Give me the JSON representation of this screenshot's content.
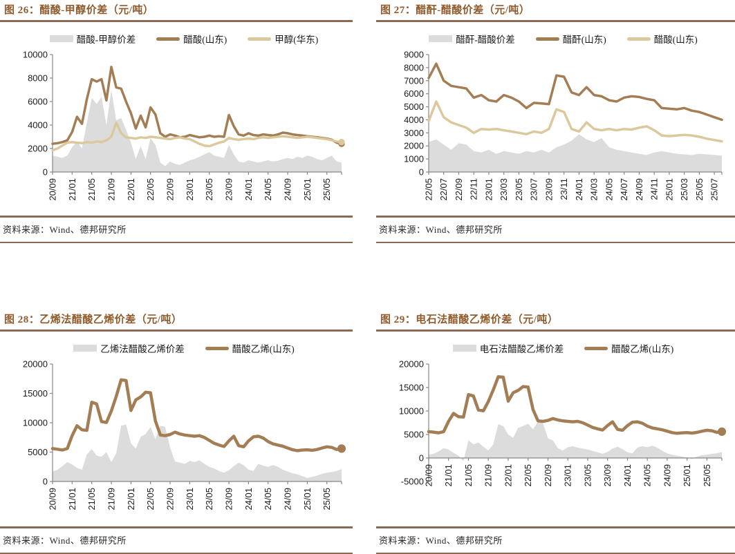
{
  "theme": {
    "title_color": "#8F5B2C",
    "rule_color": "#8A6A52",
    "spread_fill": "#DCDCDC",
    "dark_line": "#A37D54",
    "light_line": "#DBC89C"
  },
  "source_note": "资料来源：Wind、德邦研究所",
  "chart_data": [
    {
      "type": "area+line",
      "title": "图 26：醋酸-甲醇价差（元/吨）",
      "source": "资料来源：Wind、德邦研究所",
      "ylim": [
        0,
        10000
      ],
      "yticks": [
        0,
        2000,
        4000,
        6000,
        8000,
        10000
      ],
      "x_tick_labels": [
        "20/09",
        "21/01",
        "21/05",
        "21/09",
        "22/01",
        "22/05",
        "22/09",
        "23/01",
        "23/05",
        "23/09",
        "24/01",
        "24/05",
        "24/09",
        "25/01",
        "25/05"
      ],
      "grid": false,
      "legend_position": "top",
      "series": [
        {
          "name": "醋酸-甲醇价差",
          "type": "area",
          "color": "#DCDCDC",
          "values": [
            1400,
            1300,
            1200,
            1400,
            2100,
            2600,
            2000,
            4200,
            6300,
            5800,
            6400,
            4000,
            7000,
            4400,
            4600,
            3600,
            2500,
            1100,
            2200,
            1100,
            2900,
            2300,
            800,
            500,
            900,
            700,
            600,
            800,
            1000,
            1100,
            1300,
            1500,
            1700,
            1400,
            1300,
            1200,
            2300,
            1500,
            900,
            800,
            1000,
            900,
            800,
            900,
            1000,
            900,
            950,
            1100,
            1200,
            1100,
            1300,
            1200,
            1400,
            1300,
            1100,
            1000,
            1200,
            1400,
            900,
            800
          ]
        },
        {
          "name": "醋酸(山东)",
          "type": "line",
          "color": "#A37D54",
          "width": 3.5,
          "end_dot": true,
          "values": [
            2400,
            2450,
            2550,
            2700,
            3400,
            4700,
            4100,
            6200,
            7900,
            7700,
            7900,
            6100,
            8950,
            7200,
            7100,
            6000,
            5000,
            3700,
            4800,
            3800,
            5500,
            4900,
            3300,
            3000,
            3200,
            3100,
            2950,
            3000,
            3150,
            3050,
            2950,
            3000,
            3100,
            3000,
            3050,
            3000,
            4850,
            3900,
            3200,
            3100,
            3300,
            3150,
            3100,
            3200,
            3150,
            3100,
            3200,
            3350,
            3300,
            3200,
            3150,
            3100,
            3050,
            3000,
            2950,
            2900,
            2850,
            2750,
            2500,
            2400
          ]
        },
        {
          "name": "甲醇(华东)",
          "type": "line",
          "color": "#DBC89C",
          "width": 3.5,
          "end_dot": true,
          "values": [
            1850,
            2000,
            2250,
            2500,
            2550,
            2500,
            2450,
            2550,
            2500,
            2600,
            2550,
            2700,
            3000,
            4200,
            3300,
            2950,
            2900,
            2850,
            2950,
            2900,
            3000,
            2950,
            2900,
            2850,
            2800,
            2900,
            2950,
            2850,
            2800,
            2600,
            2400,
            2250,
            2200,
            2350,
            2500,
            2600,
            2900,
            2800,
            2750,
            2800,
            2850,
            2800,
            2900,
            2950,
            2900,
            2950,
            3000,
            3050,
            3000,
            2950,
            2900,
            2950,
            3000,
            2950,
            2900,
            2850,
            2800,
            2700,
            2600,
            2550
          ]
        }
      ]
    },
    {
      "type": "area+line",
      "title": "图 27：醋酐-醋酸价差（元/吨）",
      "source": "资料来源：Wind、德邦研究所",
      "ylim": [
        0,
        9000
      ],
      "yticks": [
        0,
        1000,
        2000,
        3000,
        4000,
        5000,
        6000,
        7000,
        8000,
        9000
      ],
      "x_tick_labels": [
        "22/05",
        "22/07",
        "22/09",
        "22/11",
        "23/01",
        "23/03",
        "23/05",
        "23/07",
        "23/09",
        "23/11",
        "24/01",
        "24/03",
        "24/05",
        "24/07",
        "24/09",
        "24/11",
        "25/01",
        "25/03",
        "25/05",
        "25/07"
      ],
      "grid": false,
      "legend_position": "top",
      "series": [
        {
          "name": "醋酐-醋酸价差",
          "type": "area",
          "color": "#DCDCDC",
          "values": [
            2300,
            2500,
            2100,
            1700,
            2200,
            2100,
            1600,
            1500,
            1700,
            1400,
            1600,
            1500,
            1400,
            1600,
            1500,
            1700,
            1500,
            1900,
            2100,
            2400,
            2900,
            2500,
            2300,
            2600,
            1900,
            1700,
            1600,
            1500,
            1400,
            1300,
            1500,
            1600,
            1500,
            1400,
            1350,
            1300,
            1400,
            1350,
            1300,
            1250
          ]
        },
        {
          "name": "醋酐(山东)",
          "type": "line",
          "color": "#A37D54",
          "width": 3.5,
          "end_dot": false,
          "values": [
            7200,
            8300,
            7000,
            6600,
            6500,
            6400,
            5700,
            5900,
            5500,
            5400,
            5900,
            5700,
            5400,
            4900,
            5300,
            5250,
            5200,
            7400,
            7300,
            6100,
            5900,
            6500,
            5900,
            5800,
            5500,
            5400,
            5700,
            5800,
            5750,
            5600,
            5500,
            4900,
            4850,
            4800,
            4900,
            4700,
            4600,
            4400,
            4200,
            4000
          ]
        },
        {
          "name": "醋酸(山东)",
          "type": "line",
          "color": "#DBC89C",
          "width": 3.5,
          "end_dot": false,
          "values": [
            3900,
            5400,
            4200,
            3800,
            3600,
            3400,
            3000,
            3300,
            3250,
            3300,
            3200,
            3100,
            3000,
            2900,
            3100,
            3000,
            3300,
            4800,
            4600,
            3300,
            3100,
            3800,
            3300,
            3200,
            3300,
            3200,
            3300,
            3250,
            3400,
            3500,
            3200,
            2800,
            2750,
            2800,
            2850,
            2800,
            2700,
            2550,
            2450,
            2350
          ]
        }
      ]
    },
    {
      "type": "area+line",
      "title": "图 28：乙烯法醋酸乙烯价差（元/吨）",
      "source": "资料来源：Wind、德邦研究所",
      "ylim": [
        0,
        20000
      ],
      "yticks": [
        0,
        5000,
        10000,
        15000,
        20000
      ],
      "x_tick_labels": [
        "20/09",
        "21/01",
        "21/05",
        "21/09",
        "22/01",
        "22/05",
        "22/09",
        "23/01",
        "23/05",
        "23/09",
        "24/01",
        "24/05",
        "24/09",
        "25/01",
        "25/05"
      ],
      "grid": false,
      "legend_position": "top",
      "series": [
        {
          "name": "乙烯法醋酸乙烯价差",
          "type": "area",
          "color": "#DCDCDC",
          "values": [
            1700,
            2000,
            2600,
            3300,
            2900,
            2300,
            2000,
            4600,
            5500,
            4400,
            4200,
            5000,
            3300,
            4800,
            9500,
            9700,
            6500,
            5600,
            7600,
            8100,
            9300,
            7200,
            9500,
            9300,
            5800,
            3400,
            3200,
            3000,
            3500,
            3300,
            3600,
            3000,
            2500,
            2200,
            1800,
            1500,
            1900,
            2600,
            3200,
            2800,
            2000,
            1800,
            3000,
            2700,
            2500,
            2800,
            2500,
            2000,
            1700,
            1400,
            1200,
            900,
            600,
            800,
            1000,
            1300,
            1500,
            1600,
            1800,
            2100
          ]
        },
        {
          "name": "醋酸乙烯(山东)",
          "type": "line",
          "color": "#A37D54",
          "width": 4.5,
          "end_dot": true,
          "values": [
            5600,
            5500,
            5350,
            5600,
            7800,
            9500,
            8800,
            8700,
            13500,
            13200,
            10200,
            10050,
            12000,
            14500,
            17300,
            17200,
            12100,
            13900,
            14400,
            15200,
            15100,
            10300,
            7900,
            7800,
            8000,
            8400,
            8100,
            7900,
            7800,
            7700,
            7800,
            7500,
            7000,
            6500,
            6200,
            5950,
            6900,
            7700,
            6100,
            5900,
            6900,
            7600,
            7700,
            7400,
            6800,
            6400,
            6200,
            6000,
            5700,
            5400,
            5250,
            5350,
            5400,
            5300,
            5450,
            5700,
            5900,
            5800,
            5450,
            5600
          ]
        }
      ]
    },
    {
      "type": "area+line",
      "title": "图 29：电石法醋酸乙烯价差（元/吨）",
      "source": "资料来源：Wind、德邦研究所",
      "ylim": [
        -5000,
        20000
      ],
      "yticks": [
        -5000,
        0,
        5000,
        10000,
        15000,
        20000
      ],
      "x_tick_labels": [
        "20/09",
        "21/01",
        "21/05",
        "21/09",
        "22/01",
        "22/05",
        "22/09",
        "23/01",
        "23/05",
        "23/09",
        "24/01",
        "24/05",
        "24/09",
        "25/01",
        "25/05"
      ],
      "grid": false,
      "legend_position": "top",
      "series": [
        {
          "name": "电石法醋酸乙烯价差",
          "type": "area",
          "color": "#DCDCDC",
          "values": [
            700,
            900,
            1400,
            2100,
            1800,
            1100,
            500,
            -700,
            3800,
            2900,
            3300,
            2400,
            1600,
            2900,
            7200,
            6800,
            5000,
            4300,
            6400,
            6800,
            7300,
            6100,
            7800,
            7400,
            4200,
            3700,
            2100,
            1600,
            2300,
            2500,
            2200,
            2000,
            1800,
            1500,
            1200,
            900,
            1300,
            2000,
            2400,
            1900,
            1200,
            1000,
            2200,
            2500,
            2300,
            2600,
            2200,
            1500,
            1000,
            700,
            500,
            300,
            100,
            -200,
            300,
            600,
            700,
            900,
            1000,
            1300
          ]
        },
        {
          "name": "醋酸乙烯(山东)",
          "type": "line",
          "color": "#A37D54",
          "width": 4.5,
          "end_dot": true,
          "values": [
            5600,
            5500,
            5350,
            5600,
            7800,
            9500,
            8800,
            8700,
            13500,
            13200,
            10200,
            10050,
            12000,
            14500,
            17300,
            17200,
            12100,
            13900,
            14400,
            15200,
            15100,
            10300,
            7900,
            7800,
            8000,
            8400,
            8100,
            7900,
            7800,
            7700,
            7800,
            7500,
            7000,
            6500,
            6200,
            5950,
            6900,
            7700,
            6100,
            5900,
            6900,
            7600,
            7700,
            7400,
            6800,
            6400,
            6200,
            6000,
            5700,
            5400,
            5250,
            5350,
            5400,
            5300,
            5450,
            5700,
            5900,
            5800,
            5450,
            5600
          ]
        }
      ]
    }
  ]
}
